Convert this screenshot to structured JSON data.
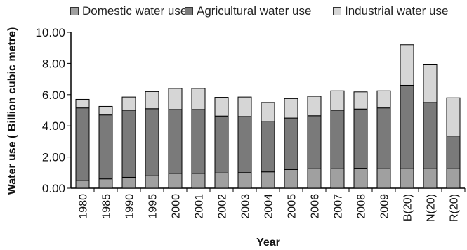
{
  "chart_data": {
    "type": "bar",
    "stacked": true,
    "title": "",
    "xlabel": "Year",
    "ylabel": "Water use ( Billion cubic metre)",
    "ylim": [
      0,
      10
    ],
    "yticks": [
      "0.00",
      "2.00",
      "4.00",
      "6.00",
      "8.00",
      "10.00"
    ],
    "grid": false,
    "legend_position": "top",
    "categories": [
      "1980",
      "1985",
      "1990",
      "1995",
      "2000",
      "2001",
      "2002",
      "2003",
      "2004",
      "2005",
      "2006",
      "2007",
      "2008",
      "2009",
      "B(20)",
      "N(20)",
      "R(20)"
    ],
    "series": [
      {
        "name": "Domestic water use",
        "color": "#a0a0a0",
        "values": [
          0.5,
          0.6,
          0.7,
          0.8,
          0.95,
          0.95,
          0.98,
          1.0,
          1.05,
          1.2,
          1.25,
          1.25,
          1.28,
          1.25,
          1.25,
          1.25,
          1.25
        ]
      },
      {
        "name": "Agricultural water use",
        "color": "#7a7a7a",
        "values": [
          4.65,
          4.1,
          4.3,
          4.3,
          4.1,
          4.1,
          3.65,
          3.6,
          3.25,
          3.3,
          3.4,
          3.75,
          3.8,
          3.9,
          5.35,
          4.25,
          2.1
        ]
      },
      {
        "name": "Industrial water use",
        "color": "#d6d6d6",
        "values": [
          0.55,
          0.55,
          0.85,
          1.1,
          1.35,
          1.35,
          1.2,
          1.25,
          1.2,
          1.25,
          1.25,
          1.25,
          1.1,
          1.1,
          2.6,
          2.45,
          2.45
        ]
      }
    ]
  }
}
